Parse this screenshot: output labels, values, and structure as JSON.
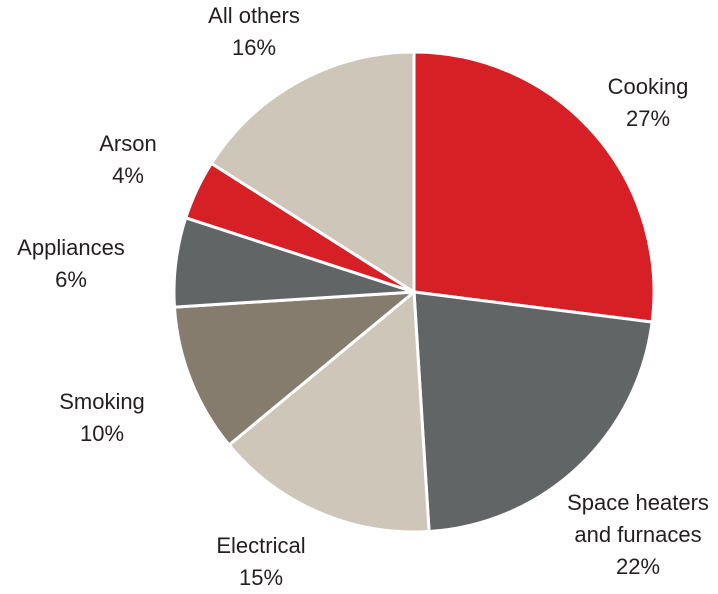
{
  "chart_data": {
    "type": "pie",
    "title": "",
    "start_angle_deg": 0,
    "direction": "clockwise",
    "slices": [
      {
        "name": "cooking",
        "label_lines": [
          "Cooking"
        ],
        "percent_label": "27%",
        "value": 27,
        "color": "#d71f26"
      },
      {
        "name": "space-heaters",
        "label_lines": [
          "Space heaters",
          "and furnaces"
        ],
        "percent_label": "22%",
        "value": 22,
        "color": "#616566"
      },
      {
        "name": "electrical",
        "label_lines": [
          "Electrical"
        ],
        "percent_label": "15%",
        "value": 15,
        "color": "#cdc6b9"
      },
      {
        "name": "smoking",
        "label_lines": [
          "Smoking"
        ],
        "percent_label": "10%",
        "value": 10,
        "color": "#857c6d"
      },
      {
        "name": "appliances",
        "label_lines": [
          "Appliances"
        ],
        "percent_label": "6%",
        "value": 6,
        "color": "#616566"
      },
      {
        "name": "arson",
        "label_lines": [
          "Arson"
        ],
        "percent_label": "4%",
        "value": 4,
        "color": "#d71f26"
      },
      {
        "name": "all-others",
        "label_lines": [
          "All others"
        ],
        "percent_label": "16%",
        "value": 16,
        "color": "#cdc6b9"
      }
    ]
  }
}
